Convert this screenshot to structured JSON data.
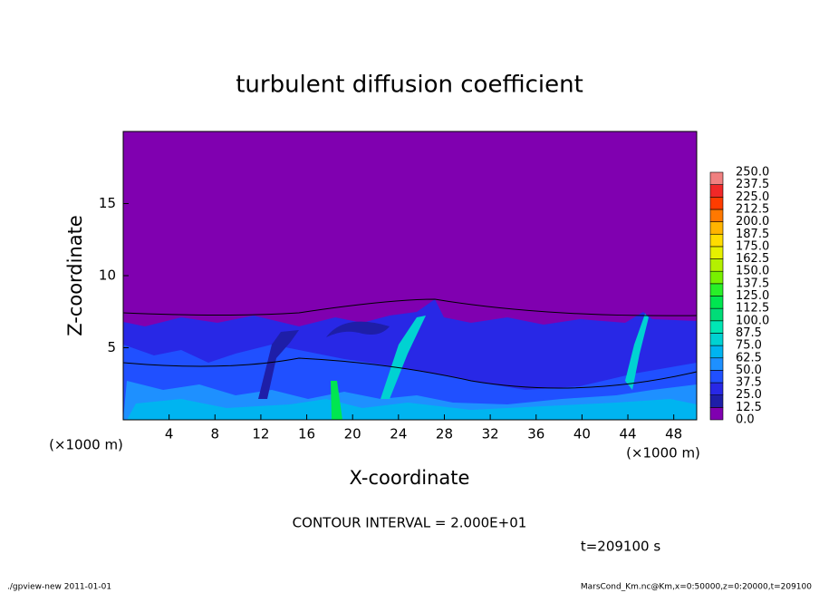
{
  "chart_data": {
    "type": "contour",
    "title": "turbulent diffusion coefficient",
    "xlabel": "X-coordinate",
    "ylabel": "Z-coordinate",
    "x_unit_labels": [
      "(×1000 m)",
      "(×1000 m)"
    ],
    "xlim": [
      0,
      50
    ],
    "xticks": [
      4,
      8,
      12,
      16,
      20,
      24,
      28,
      32,
      36,
      40,
      44,
      48
    ],
    "ylim": [
      0,
      20
    ],
    "yticks": [
      5,
      10,
      15
    ],
    "levels": [
      {
        "value": 0,
        "label": "0.0"
      },
      {
        "value": 12.5,
        "label": "12.5"
      },
      {
        "value": 25,
        "label": "25.0"
      },
      {
        "value": 37.5,
        "label": "37.5"
      },
      {
        "value": 50,
        "label": "50.0"
      },
      {
        "value": 62.5,
        "label": "62.5"
      },
      {
        "value": 75,
        "label": "75.0"
      },
      {
        "value": 87.5,
        "label": "87.5"
      },
      {
        "value": 100,
        "label": "100.0"
      },
      {
        "value": 112.5,
        "label": "112.5"
      },
      {
        "value": 125,
        "label": "125.0"
      },
      {
        "value": 137.5,
        "label": "137.5"
      },
      {
        "value": 150,
        "label": "150.0"
      },
      {
        "value": 162.5,
        "label": "162.5"
      },
      {
        "value": 175,
        "label": "175.0"
      },
      {
        "value": 187.5,
        "label": "187.5"
      },
      {
        "value": 200,
        "label": "200.0"
      },
      {
        "value": 212.5,
        "label": "212.5"
      },
      {
        "value": 225,
        "label": "225.0"
      },
      {
        "value": 237.5,
        "label": "237.5"
      },
      {
        "value": 250,
        "label": "250.0"
      }
    ],
    "colors": [
      "#8000b0",
      "#1e1ea8",
      "#2828e6",
      "#2050ff",
      "#1e90ff",
      "#00b4f0",
      "#00d2d2",
      "#00e6b4",
      "#00dc78",
      "#00e650",
      "#28f028",
      "#78f000",
      "#b4f000",
      "#e6f000",
      "#ffdc00",
      "#ffb400",
      "#ff7800",
      "#ff3c00",
      "#f02828",
      "#f08080"
    ],
    "contour_interval": "CONTOUR INTERVAL = 2.000E+01",
    "time_label": "t=209100 s",
    "footer_left": "./gpview-new  2011-01-01",
    "footer_right": "MarsCond_Km.nc@Km,x=0:50000,z=0:20000,t=209100"
  }
}
